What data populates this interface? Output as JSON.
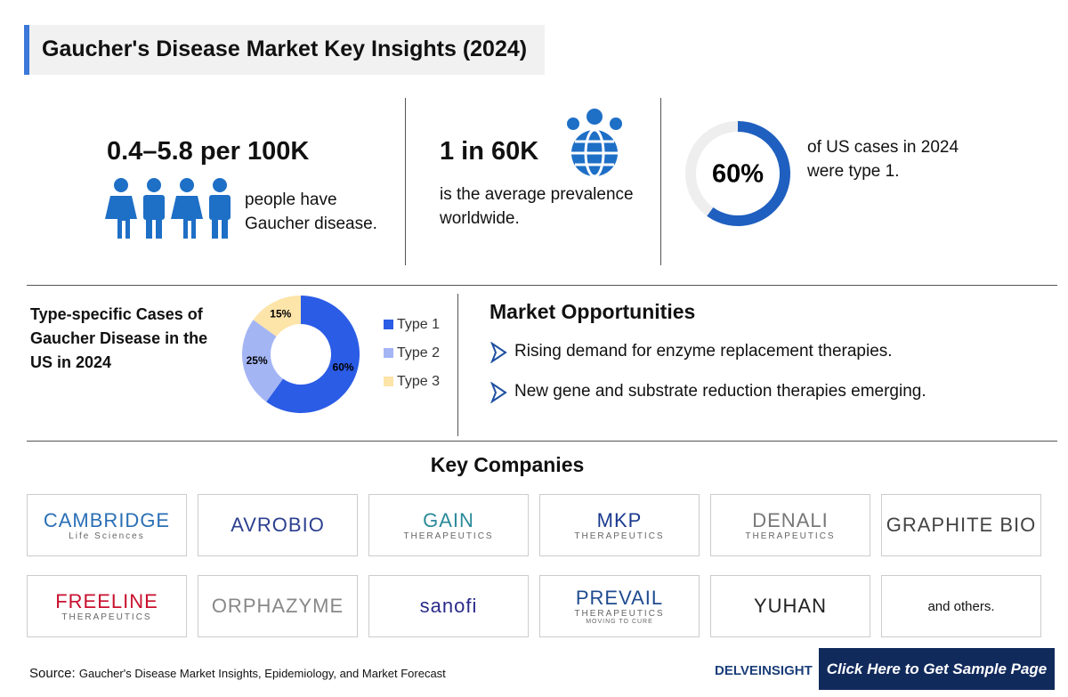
{
  "header": {
    "title": "Gaucher's Disease Market Key Insights (2024)"
  },
  "stats": [
    {
      "headline": "0.4–5.8 per 100K",
      "text": "people have Gaucher disease."
    },
    {
      "headline": "1 in 60K",
      "text": "is the average prevalence worldwide."
    },
    {
      "gauge_value": 60,
      "gauge_label": "60%",
      "text": "of US cases in 2024 were type 1."
    }
  ],
  "chart_data": {
    "type": "pie",
    "donut": true,
    "title": "Type-specific Cases of Gaucher Disease in the US in 2024",
    "categories": [
      "Type 1",
      "Type 2",
      "Type 3"
    ],
    "values": [
      60,
      25,
      15
    ],
    "value_labels": [
      "60%",
      "25%",
      "15%"
    ],
    "colors": [
      "#2b5ce6",
      "#a4b5f4",
      "#fde4a8"
    ]
  },
  "opportunities": {
    "title": "Market Opportunities",
    "items": [
      "Rising demand for enzyme replacement therapies.",
      "New gene and substrate reduction therapies emerging."
    ]
  },
  "companies": {
    "title": "Key Companies",
    "logos": [
      [
        "CAMBRIDGE",
        "Life Sciences"
      ],
      [
        "AVROBIO"
      ],
      [
        "GAIN",
        "THERAPEUTICS"
      ],
      [
        "MKP",
        "THERAPEUTICS"
      ],
      [
        "DENALI",
        "THERAPEUTICS"
      ],
      [
        "GRAPHITE BIO"
      ],
      [
        "FREELINE",
        "THERAPEUTICS"
      ],
      [
        "ORPHAZYME"
      ],
      [
        "sanofi"
      ],
      [
        "PREVAIL",
        "THERAPEUTICS",
        "MOVING TO CURE"
      ],
      [
        "YUHAN"
      ]
    ],
    "others": "and others."
  },
  "footer": {
    "source_label": "Source:",
    "source": "Gaucher's Disease Market Insights, Epidemiology, and Market Forecast",
    "brand": "DELVEINSIGHT",
    "button": "Click Here to Get Sample Page"
  }
}
